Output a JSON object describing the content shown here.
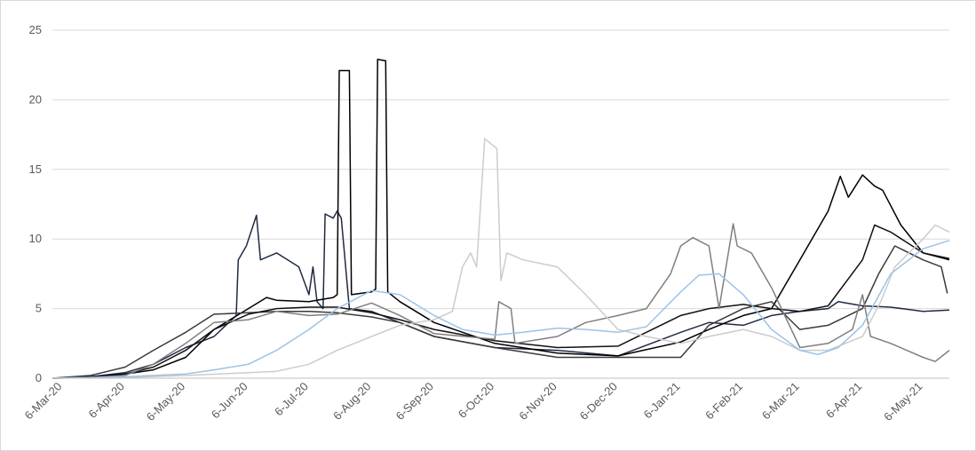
{
  "chart_data": {
    "type": "line",
    "title": "",
    "xlabel": "",
    "ylabel": "",
    "ylim": [
      0,
      25
    ],
    "yticks": [
      0,
      5,
      10,
      15,
      20,
      25
    ],
    "xlim": [
      "2020-03-01",
      "2021-05-19"
    ],
    "xtick_dates": [
      "2020-03-06",
      "2020-04-06",
      "2020-05-06",
      "2020-06-06",
      "2020-07-06",
      "2020-08-06",
      "2020-09-06",
      "2020-10-06",
      "2020-11-06",
      "2020-12-06",
      "2021-01-06",
      "2021-02-06",
      "2021-03-06",
      "2021-04-06",
      "2021-05-06"
    ],
    "xtick_labels": [
      "6-Mar-20",
      "6-Apr-20",
      "6-May-20",
      "6-Jun-20",
      "6-Jul-20",
      "6-Aug-20",
      "6-Sep-20",
      "6-Oct-20",
      "6-Nov-20",
      "6-Dec-20",
      "6-Jan-21",
      "6-Feb-21",
      "6-Mar-21",
      "6-Apr-21",
      "6-May-21"
    ],
    "grid": true,
    "legend": "none",
    "series": [
      {
        "color": "#1f2a44",
        "points": [
          [
            "2020-03-01",
            0
          ],
          [
            "2020-03-20",
            0.1
          ],
          [
            "2020-04-06",
            0.4
          ],
          [
            "2020-04-20",
            1.0
          ],
          [
            "2020-05-06",
            2.2
          ],
          [
            "2020-05-20",
            3.0
          ],
          [
            "2020-05-31",
            4.5
          ],
          [
            "2020-06-01",
            8.5
          ],
          [
            "2020-06-05",
            9.5
          ],
          [
            "2020-06-10",
            11.7
          ],
          [
            "2020-06-12",
            8.5
          ],
          [
            "2020-06-20",
            9.0
          ],
          [
            "2020-07-01",
            8.0
          ],
          [
            "2020-07-06",
            6.0
          ],
          [
            "2020-07-08",
            8.0
          ],
          [
            "2020-07-10",
            5.5
          ],
          [
            "2020-07-13",
            5.0
          ],
          [
            "2020-07-14",
            11.8
          ],
          [
            "2020-07-18",
            11.5
          ],
          [
            "2020-07-20",
            12.0
          ],
          [
            "2020-07-22",
            11.5
          ],
          [
            "2020-07-26",
            5.0
          ],
          [
            "2020-08-06",
            4.8
          ],
          [
            "2020-08-20",
            4.0
          ],
          [
            "2020-09-06",
            3.0
          ],
          [
            "2020-10-06",
            2.2
          ],
          [
            "2020-11-06",
            2.0
          ],
          [
            "2020-12-06",
            1.6
          ],
          [
            "2021-01-06",
            3.3
          ],
          [
            "2021-01-20",
            4.0
          ],
          [
            "2021-02-06",
            3.8
          ],
          [
            "2021-02-20",
            4.5
          ],
          [
            "2021-03-06",
            4.8
          ],
          [
            "2021-03-20",
            5.0
          ],
          [
            "2021-03-25",
            5.5
          ],
          [
            "2021-04-06",
            5.2
          ],
          [
            "2021-04-20",
            5.1
          ],
          [
            "2021-05-06",
            4.8
          ],
          [
            "2021-05-19",
            4.9
          ]
        ]
      },
      {
        "color": "#000000",
        "points": [
          [
            "2020-03-01",
            0
          ],
          [
            "2020-03-20",
            0.1
          ],
          [
            "2020-04-06",
            0.3
          ],
          [
            "2020-04-20",
            0.6
          ],
          [
            "2020-05-06",
            1.5
          ],
          [
            "2020-05-20",
            3.5
          ],
          [
            "2020-06-06",
            5.0
          ],
          [
            "2020-06-15",
            5.8
          ],
          [
            "2020-06-20",
            5.6
          ],
          [
            "2020-07-06",
            5.5
          ],
          [
            "2020-07-18",
            5.8
          ],
          [
            "2020-07-20",
            6.0
          ],
          [
            "2020-07-21",
            22.1
          ],
          [
            "2020-07-26",
            22.1
          ],
          [
            "2020-07-27",
            6.0
          ],
          [
            "2020-08-06",
            6.2
          ],
          [
            "2020-08-08",
            6.4
          ],
          [
            "2020-08-09",
            22.9
          ],
          [
            "2020-08-13",
            22.8
          ],
          [
            "2020-08-14",
            6.2
          ],
          [
            "2020-08-20",
            5.5
          ],
          [
            "2020-09-06",
            4.0
          ],
          [
            "2020-10-06",
            2.5
          ],
          [
            "2020-11-06",
            1.8
          ],
          [
            "2020-12-06",
            1.6
          ],
          [
            "2021-01-06",
            2.6
          ],
          [
            "2021-01-20",
            3.5
          ],
          [
            "2021-02-06",
            4.5
          ],
          [
            "2021-02-20",
            5.0
          ],
          [
            "2021-03-06",
            8.5
          ],
          [
            "2021-03-20",
            12.0
          ],
          [
            "2021-03-26",
            14.5
          ],
          [
            "2021-03-30",
            13.0
          ],
          [
            "2021-04-06",
            14.6
          ],
          [
            "2021-04-12",
            13.8
          ],
          [
            "2021-04-16",
            13.5
          ],
          [
            "2021-04-25",
            11.0
          ],
          [
            "2021-05-06",
            9.0
          ],
          [
            "2021-05-19",
            8.5
          ]
        ]
      },
      {
        "color": "#3a3a3a",
        "points": [
          [
            "2020-03-01",
            0
          ],
          [
            "2020-03-20",
            0.2
          ],
          [
            "2020-04-06",
            0.8
          ],
          [
            "2020-04-20",
            2.0
          ],
          [
            "2020-05-06",
            3.3
          ],
          [
            "2020-05-20",
            4.6
          ],
          [
            "2020-06-06",
            4.7
          ],
          [
            "2020-06-20",
            4.8
          ],
          [
            "2020-07-06",
            4.8
          ],
          [
            "2020-07-20",
            4.7
          ],
          [
            "2020-08-06",
            4.4
          ],
          [
            "2020-08-20",
            4.0
          ],
          [
            "2020-09-06",
            3.0
          ],
          [
            "2020-10-06",
            2.2
          ],
          [
            "2020-11-06",
            1.5
          ],
          [
            "2020-12-06",
            1.5
          ],
          [
            "2021-01-06",
            1.5
          ],
          [
            "2021-01-20",
            3.8
          ],
          [
            "2021-02-06",
            5.0
          ],
          [
            "2021-02-20",
            5.5
          ],
          [
            "2021-03-06",
            3.5
          ],
          [
            "2021-03-20",
            3.8
          ],
          [
            "2021-04-06",
            5.0
          ],
          [
            "2021-04-14",
            7.5
          ],
          [
            "2021-04-22",
            9.5
          ],
          [
            "2021-05-06",
            8.5
          ],
          [
            "2021-05-15",
            8.0
          ],
          [
            "2021-05-18",
            6.1
          ]
        ]
      },
      {
        "color": "#111111",
        "points": [
          [
            "2020-03-01",
            0
          ],
          [
            "2020-03-20",
            0.05
          ],
          [
            "2020-04-06",
            0.3
          ],
          [
            "2020-04-20",
            0.8
          ],
          [
            "2020-05-06",
            2.0
          ],
          [
            "2020-05-20",
            3.5
          ],
          [
            "2020-06-06",
            4.6
          ],
          [
            "2020-06-20",
            5.0
          ],
          [
            "2020-07-06",
            5.1
          ],
          [
            "2020-07-20",
            5.1
          ],
          [
            "2020-08-06",
            4.7
          ],
          [
            "2020-08-20",
            4.2
          ],
          [
            "2020-09-06",
            3.5
          ],
          [
            "2020-10-06",
            2.7
          ],
          [
            "2020-11-06",
            2.2
          ],
          [
            "2020-12-06",
            2.3
          ],
          [
            "2021-01-06",
            4.5
          ],
          [
            "2021-01-20",
            5.0
          ],
          [
            "2021-02-06",
            5.3
          ],
          [
            "2021-02-20",
            5.0
          ],
          [
            "2021-03-06",
            4.8
          ],
          [
            "2021-03-20",
            5.2
          ],
          [
            "2021-04-06",
            8.5
          ],
          [
            "2021-04-12",
            11.0
          ],
          [
            "2021-04-20",
            10.5
          ],
          [
            "2021-05-06",
            9.0
          ],
          [
            "2021-05-19",
            8.6
          ]
        ]
      },
      {
        "color": "#7f7f7f",
        "points": [
          [
            "2020-03-01",
            0
          ],
          [
            "2020-03-20",
            0.05
          ],
          [
            "2020-04-06",
            0.2
          ],
          [
            "2020-04-20",
            1.0
          ],
          [
            "2020-05-06",
            2.5
          ],
          [
            "2020-05-20",
            4.0
          ],
          [
            "2020-06-06",
            4.2
          ],
          [
            "2020-06-20",
            4.8
          ],
          [
            "2020-07-06",
            4.5
          ],
          [
            "2020-07-20",
            4.6
          ],
          [
            "2020-08-06",
            5.4
          ],
          [
            "2020-08-20",
            4.5
          ],
          [
            "2020-09-06",
            3.2
          ],
          [
            "2020-10-06",
            2.8
          ],
          [
            "2020-10-08",
            5.5
          ],
          [
            "2020-10-14",
            5.0
          ],
          [
            "2020-10-16",
            2.5
          ],
          [
            "2020-11-06",
            3.0
          ],
          [
            "2020-11-20",
            4.0
          ],
          [
            "2020-12-06",
            4.5
          ],
          [
            "2020-12-20",
            5.0
          ],
          [
            "2021-01-01",
            7.5
          ],
          [
            "2021-01-06",
            9.5
          ],
          [
            "2021-01-12",
            10.1
          ],
          [
            "2021-01-20",
            9.5
          ],
          [
            "2021-01-25",
            5.0
          ],
          [
            "2021-02-01",
            11.1
          ],
          [
            "2021-02-03",
            9.5
          ],
          [
            "2021-02-10",
            9.0
          ],
          [
            "2021-02-20",
            6.5
          ],
          [
            "2021-03-06",
            2.2
          ],
          [
            "2021-03-20",
            2.5
          ],
          [
            "2021-04-01",
            3.5
          ],
          [
            "2021-04-06",
            6.0
          ],
          [
            "2021-04-10",
            3.0
          ],
          [
            "2021-04-20",
            2.5
          ],
          [
            "2021-05-06",
            1.5
          ],
          [
            "2021-05-12",
            1.2
          ],
          [
            "2021-05-19",
            2.0
          ]
        ]
      },
      {
        "color": "#cccccc",
        "points": [
          [
            "2020-03-01",
            0
          ],
          [
            "2020-04-06",
            0.05
          ],
          [
            "2020-05-06",
            0.2
          ],
          [
            "2020-06-06",
            0.4
          ],
          [
            "2020-06-20",
            0.5
          ],
          [
            "2020-07-06",
            1.0
          ],
          [
            "2020-07-20",
            2.0
          ],
          [
            "2020-08-06",
            3.0
          ],
          [
            "2020-08-20",
            3.8
          ],
          [
            "2020-09-06",
            4.2
          ],
          [
            "2020-09-15",
            4.8
          ],
          [
            "2020-09-20",
            8.0
          ],
          [
            "2020-09-24",
            9.0
          ],
          [
            "2020-09-27",
            8.0
          ],
          [
            "2020-10-01",
            17.2
          ],
          [
            "2020-10-07",
            16.5
          ],
          [
            "2020-10-09",
            7.0
          ],
          [
            "2020-10-12",
            9.0
          ],
          [
            "2020-10-20",
            8.5
          ],
          [
            "2020-11-06",
            8.0
          ],
          [
            "2020-11-20",
            6.0
          ],
          [
            "2020-12-06",
            3.5
          ],
          [
            "2020-12-20",
            3.0
          ],
          [
            "2021-01-06",
            2.5
          ],
          [
            "2021-01-20",
            3.0
          ],
          [
            "2021-02-06",
            3.5
          ],
          [
            "2021-02-20",
            3.0
          ],
          [
            "2021-03-06",
            2.0
          ],
          [
            "2021-03-20",
            2.0
          ],
          [
            "2021-04-06",
            3.0
          ],
          [
            "2021-04-15",
            5.5
          ],
          [
            "2021-04-22",
            8.0
          ],
          [
            "2021-05-06",
            10.0
          ],
          [
            "2021-05-12",
            11.0
          ],
          [
            "2021-05-19",
            10.5
          ]
        ]
      },
      {
        "color": "#9dc3e6",
        "points": [
          [
            "2020-03-01",
            0
          ],
          [
            "2020-04-06",
            0.1
          ],
          [
            "2020-05-06",
            0.3
          ],
          [
            "2020-05-20",
            0.6
          ],
          [
            "2020-06-06",
            1.0
          ],
          [
            "2020-06-20",
            2.0
          ],
          [
            "2020-07-06",
            3.5
          ],
          [
            "2020-07-20",
            5.0
          ],
          [
            "2020-08-06",
            6.3
          ],
          [
            "2020-08-20",
            6.0
          ],
          [
            "2020-09-06",
            4.5
          ],
          [
            "2020-09-20",
            3.5
          ],
          [
            "2020-10-06",
            3.1
          ],
          [
            "2020-10-20",
            3.3
          ],
          [
            "2020-11-06",
            3.6
          ],
          [
            "2020-11-20",
            3.5
          ],
          [
            "2020-12-06",
            3.3
          ],
          [
            "2020-12-20",
            3.7
          ],
          [
            "2021-01-06",
            6.2
          ],
          [
            "2021-01-15",
            7.4
          ],
          [
            "2021-01-25",
            7.5
          ],
          [
            "2021-02-06",
            6.0
          ],
          [
            "2021-02-20",
            3.5
          ],
          [
            "2021-03-06",
            2.0
          ],
          [
            "2021-03-15",
            1.7
          ],
          [
            "2021-03-25",
            2.2
          ],
          [
            "2021-04-06",
            3.8
          ],
          [
            "2021-04-20",
            7.5
          ],
          [
            "2021-05-06",
            9.3
          ],
          [
            "2021-05-19",
            9.9
          ]
        ]
      }
    ]
  }
}
